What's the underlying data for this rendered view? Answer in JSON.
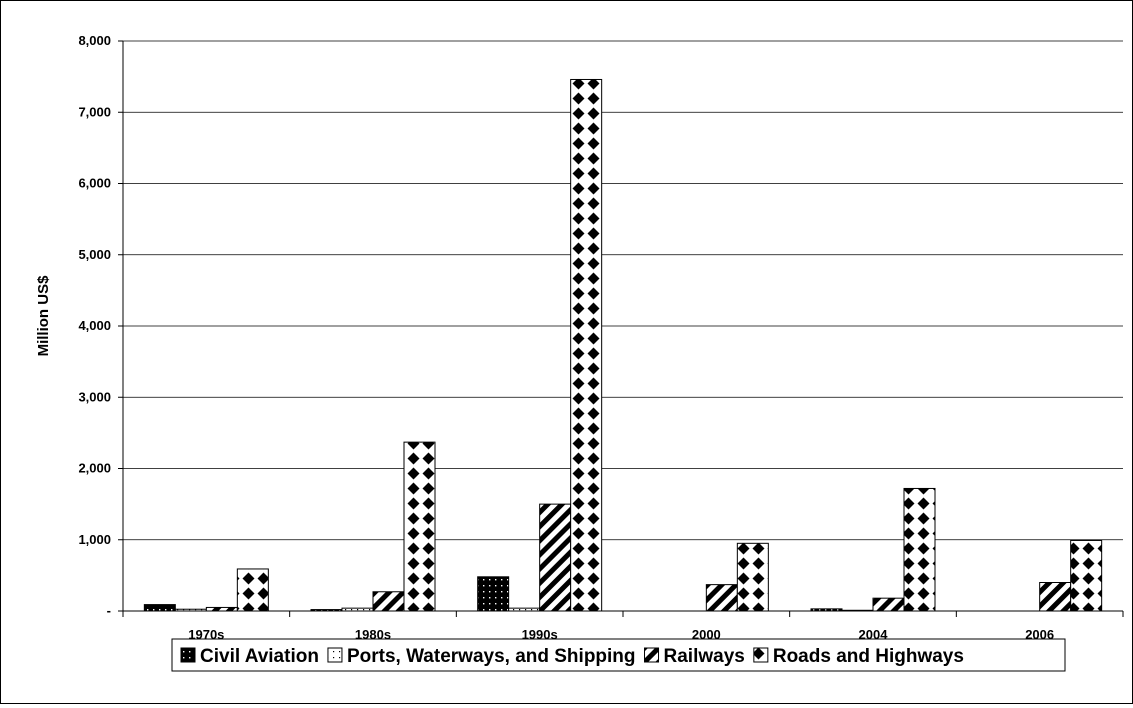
{
  "chart_data": {
    "type": "bar",
    "title": "",
    "xlabel": "",
    "ylabel": "Million US$",
    "ylim": [
      0,
      8000
    ],
    "y_ticks": [
      0,
      1000,
      2000,
      3000,
      4000,
      5000,
      6000,
      7000,
      8000
    ],
    "y_tick_labels": [
      "-",
      "1,000",
      "2,000",
      "3,000",
      "4,000",
      "5,000",
      "6,000",
      "7,000",
      "8,000"
    ],
    "grid": true,
    "legend_position": "bottom",
    "categories": [
      "1970s",
      "1980s",
      "1990s",
      "2000",
      "2004",
      "2006"
    ],
    "series": [
      {
        "name": "Civil Aviation",
        "values": [
          90,
          20,
          480,
          0,
          30,
          0
        ],
        "pattern": "dotted-black"
      },
      {
        "name": "Ports, Waterways, and Shipping",
        "values": [
          25,
          40,
          40,
          0,
          10,
          0
        ],
        "pattern": "dotted-white"
      },
      {
        "name": "Railways",
        "values": [
          50,
          270,
          1500,
          370,
          180,
          400
        ],
        "pattern": "diagonal-stripes"
      },
      {
        "name": "Roads and Highways",
        "values": [
          590,
          2370,
          7460,
          950,
          1720,
          990
        ],
        "pattern": "diamond-checker"
      }
    ],
    "colors": {
      "ink": "#000000",
      "background": "#ffffff"
    }
  }
}
